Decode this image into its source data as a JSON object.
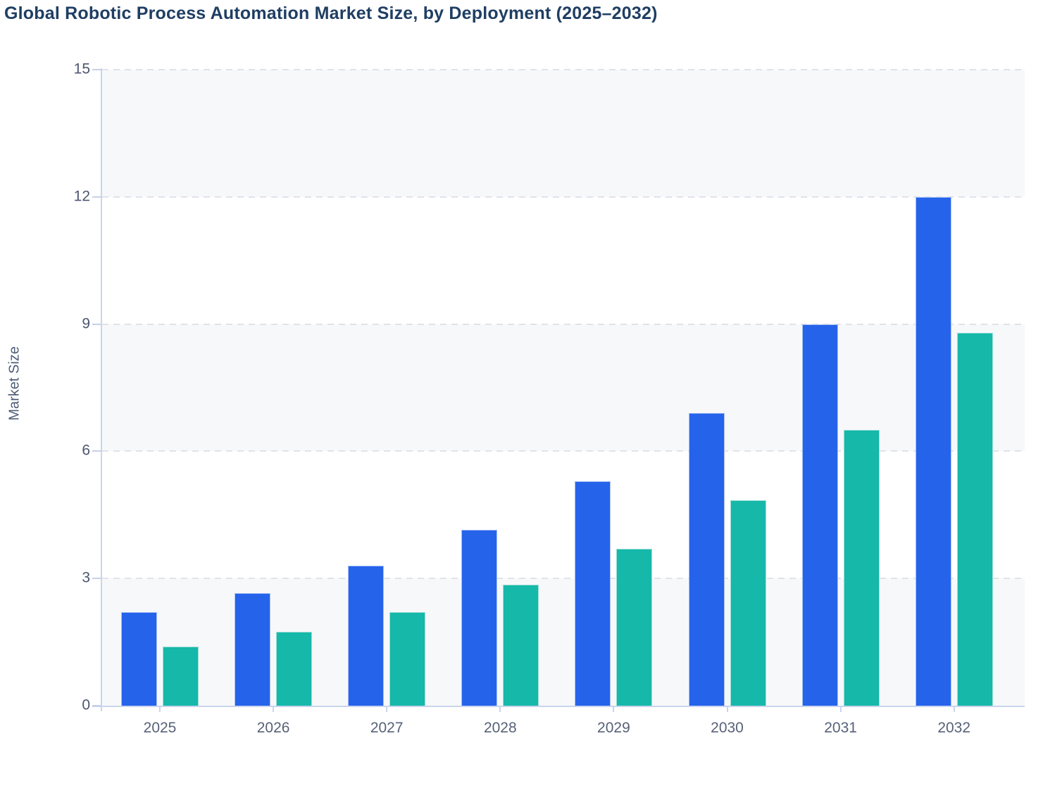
{
  "title": "Global Robotic Process Automation Market Size, by Deployment (2025–2032)",
  "chart_data": {
    "type": "bar",
    "title": "Global Robotic Process Automation Market Size, by Deployment (2025–2032)",
    "xlabel": "",
    "ylabel": "Market Size",
    "categories": [
      "2025",
      "2026",
      "2027",
      "2028",
      "2029",
      "2030",
      "2031",
      "2032"
    ],
    "series": [
      {
        "name": "blue",
        "color": "#2563eb",
        "border_color": "#a9bff2",
        "values": [
          2.2,
          2.65,
          3.3,
          4.15,
          5.3,
          6.9,
          9.0,
          12.0
        ]
      },
      {
        "name": "teal",
        "color": "#15b8a9",
        "border_color": "#9edfd6",
        "values": [
          1.4,
          1.75,
          2.2,
          2.85,
          3.7,
          4.85,
          6.5,
          8.8
        ]
      }
    ],
    "ylim": [
      0,
      15
    ],
    "yticks": [
      "0",
      "3",
      "6",
      "9",
      "12",
      "15"
    ],
    "grid": "horizontal-dashed",
    "legend": "none",
    "band_colors": [
      "#f7f8fa",
      "#ffffff"
    ]
  },
  "colors": {
    "title": "#1f3e63",
    "axis_line": "#c9d4ee",
    "gridline": "#e1e3e9",
    "y_tick_label": "#4d5670",
    "x_tick_label": "#576178",
    "y_axis_title": "#4e5d78"
  }
}
